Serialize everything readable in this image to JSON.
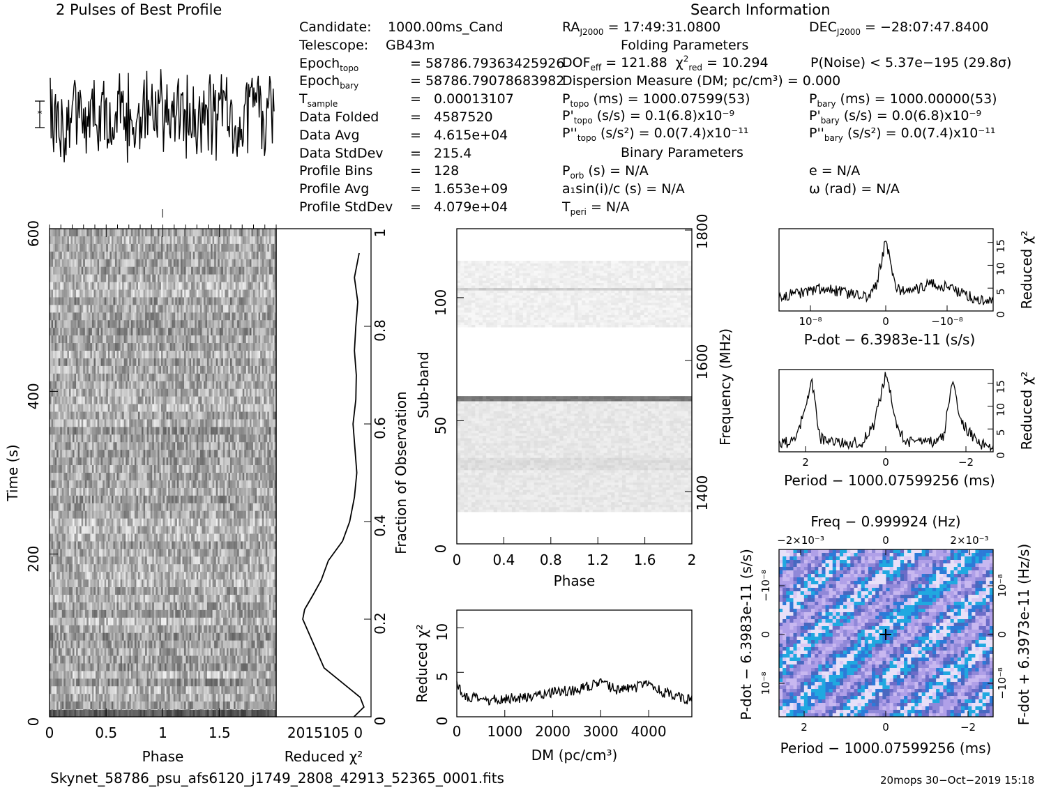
{
  "header": {
    "profile_title": "2 Pulses of Best Profile",
    "search_title": "Search Information",
    "folding_title": "Folding Parameters",
    "binary_title": "Binary Parameters"
  },
  "info_left": [
    {
      "label": "Candidate:",
      "value": "1000.00ms_Cand"
    },
    {
      "label": "Telescope:",
      "value": "GB43m"
    },
    {
      "label": "Epoch",
      "sub": "topo",
      "value": "= 58786.79363425926"
    },
    {
      "label": "Epoch",
      "sub": "bary",
      "value": "= 58786.79078683982"
    },
    {
      "label": "T",
      "sub": "sample",
      "eq": "=",
      "value": "0.00013107"
    },
    {
      "label": "Data Folded",
      "eq": "=",
      "value": "4587520"
    },
    {
      "label": "Data Avg",
      "eq": "=",
      "value": "4.615e+04"
    },
    {
      "label": "Data StdDev",
      "eq": "=",
      "value": "215.4"
    },
    {
      "label": "Profile Bins",
      "eq": "=",
      "value": "128"
    },
    {
      "label": "Profile Avg",
      "eq": "=",
      "value": "1.653e+09"
    },
    {
      "label": "Profile StdDev",
      "eq": "=",
      "value": "4.079e+04"
    }
  ],
  "search": {
    "ra": "= 17:49:31.0800",
    "dec": "= −28:07:47.8400",
    "dof": "= 121.88",
    "chi2": "= 10.294",
    "pnoise": "P(Noise) < 5.37e−195   (29.8σ)",
    "dm": "Dispersion Measure (DM; pc/cm³) = 0.000",
    "ptopo": "(ms) =   1000.07599(53)",
    "pbary": "(ms) =   1000.00000(53)",
    "pdtopo": "(s/s) =   0.1(6.8)x10⁻⁹",
    "pdbary": "(s/s) = 0.0(6.8)x10⁻⁹",
    "pddtopo": "(s/s²) = 0.0(7.4)x10⁻¹¹",
    "pddbary": "(s/s²) = 0.0(7.4)x10⁻¹¹",
    "porb": "(s) = N/A",
    "e": "e = N/A",
    "a1": "a₁sin(i)/c (s) = N/A",
    "omega": "ω (rad) = N/A",
    "tperi": "= N/A"
  },
  "footer": {
    "filename": "Skynet_58786_psu_afs6120_j1749_2808_42913_52365_0001.fits",
    "stamp": "20mops 30−Oct−2019 15:18"
  },
  "chart_data": [
    {
      "id": "profile",
      "type": "line",
      "title": "2 Pulses of Best Profile",
      "x_range": [
        0,
        2
      ],
      "note": "noise-like profile"
    },
    {
      "id": "time_phase",
      "type": "heatmap",
      "xlabel": "Phase",
      "ylabel": "Time (s)",
      "xlim": [
        0,
        2
      ],
      "ylim": [
        0,
        600
      ],
      "x_ticks": [
        "0",
        "0.5",
        "1",
        "1.5"
      ],
      "y_ticks": [
        "0",
        "200",
        "400",
        "600"
      ]
    },
    {
      "id": "time_chi2",
      "type": "line",
      "xlabel": "Reduced χ²",
      "ylabel": "Fraction of Observation",
      "x_ticks_label": "2015105 0",
      "y_ticks": [
        "0",
        "0.2",
        "0.4",
        "0.6",
        "0.8",
        "1"
      ],
      "x": [
        3.6,
        1.5,
        2.3,
        9.9,
        14.4,
        14.0,
        12.2,
        10.5,
        9.0,
        6.0,
        4.5,
        3.5,
        3.0,
        3.4,
        3.8,
        3.2,
        3.1,
        3.5,
        3.2,
        2.8,
        3.5,
        2.5
      ],
      "y": [
        0.0,
        0.02,
        0.04,
        0.1,
        0.2,
        0.22,
        0.25,
        0.28,
        0.32,
        0.36,
        0.4,
        0.45,
        0.5,
        0.55,
        0.6,
        0.65,
        0.7,
        0.75,
        0.8,
        0.85,
        0.9,
        0.95
      ]
    },
    {
      "id": "subband",
      "type": "heatmap",
      "xlabel": "Phase",
      "ylabel": "Sub-band",
      "ylabel2": "Frequency (MHz)",
      "xlim": [
        0,
        2
      ],
      "ylim": [
        0,
        128
      ],
      "x_ticks": [
        "0",
        "0.4",
        "0.8",
        "1.2",
        "1.6",
        "2"
      ],
      "y_ticks": [
        "0",
        "50",
        "100"
      ],
      "y2_ticks": [
        "1400",
        "1600",
        "1800"
      ]
    },
    {
      "id": "dm_chi2",
      "type": "line",
      "xlabel": "DM (pc/cm³)",
      "ylabel": "Reduced χ²",
      "xlim": [
        0,
        4900
      ],
      "ylim": [
        0,
        12
      ],
      "x_ticks": [
        "0",
        "1000",
        "2000",
        "3000",
        "4000"
      ],
      "y_ticks": [
        "0",
        "5",
        "10"
      ],
      "x": [
        0,
        200,
        400,
        600,
        800,
        1000,
        1200,
        1400,
        1600,
        1800,
        2000,
        2200,
        2400,
        2600,
        2800,
        3000,
        3200,
        3400,
        3600,
        3800,
        4000,
        4200,
        4400,
        4600,
        4800,
        4900
      ],
      "y": [
        3.5,
        2.2,
        2.0,
        1.8,
        1.9,
        2.0,
        2.2,
        2.1,
        2.4,
        2.6,
        2.8,
        3.0,
        2.9,
        3.2,
        3.5,
        3.8,
        3.3,
        3.0,
        3.2,
        3.4,
        3.6,
        3.0,
        2.6,
        2.2,
        2.0,
        1.8
      ]
    },
    {
      "id": "pdot_chi2",
      "type": "line",
      "xlabel": "P-dot − 6.3983e-11 (s/s)",
      "ylabel": "Reduced χ²",
      "ylim": [
        0,
        18
      ],
      "x_ticks": [
        "10⁻⁸",
        "0",
        "−10⁻⁸"
      ],
      "y_ticks": [
        "0",
        "5",
        "10",
        "15"
      ],
      "x": [
        -1.0,
        -0.8,
        -0.6,
        -0.4,
        -0.2,
        -0.1,
        -0.05,
        0.0,
        0.05,
        0.1,
        0.2,
        0.4,
        0.6,
        0.8,
        1.0
      ],
      "y": [
        3,
        4,
        5,
        4,
        3,
        5,
        10,
        16,
        9,
        5,
        4,
        6,
        5,
        3,
        2
      ]
    },
    {
      "id": "period_chi2",
      "type": "line",
      "xlabel": "Period − 1000.07599256 (ms)",
      "ylabel": "Reduced χ²",
      "ylim": [
        0,
        18
      ],
      "x_ticks": [
        "2",
        "0",
        "−2"
      ],
      "y_ticks": [
        "0",
        "5",
        "10",
        "15"
      ],
      "x": [
        -2.6,
        -2.2,
        -1.8,
        -1.6,
        -1.2,
        -0.6,
        -0.3,
        0.0,
        0.3,
        0.6,
        1.0,
        1.4,
        1.6,
        1.8,
        2.2,
        2.6
      ],
      "y": [
        2,
        2,
        15,
        3,
        2,
        2,
        6,
        17,
        4,
        2,
        2,
        3,
        16,
        7,
        2,
        1
      ]
    },
    {
      "id": "p_pdot",
      "type": "heatmap",
      "title": "Freq − 0.999924 (Hz)",
      "xlabel": "Period − 1000.07599256 (ms)",
      "ylabel": "P-dot − 6.3983e-11 (s/s)",
      "ylabel2": "F-dot + 6.3973e-11 (Hz/s)",
      "x_ticks": [
        "2",
        "0",
        "−2"
      ],
      "x2_ticks": [
        "−2×10⁻³",
        "0",
        "2×10⁻³"
      ],
      "y_ticks": [
        "−10⁻⁸",
        "0",
        "10⁻⁸"
      ],
      "y2_ticks": [
        "10⁻⁸",
        "0",
        "−10⁻⁸"
      ]
    }
  ]
}
